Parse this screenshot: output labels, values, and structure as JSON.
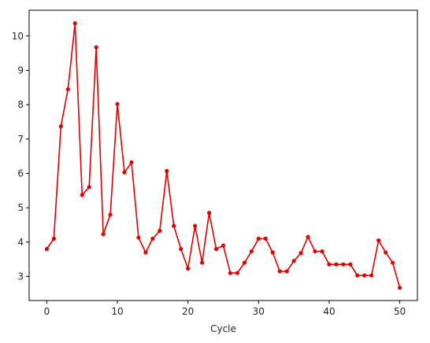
{
  "chart_data": {
    "type": "line",
    "title": "",
    "xlabel": "Cycle",
    "ylabel": "",
    "xlim": [
      -2.5,
      52.5
    ],
    "ylim": [
      2.3,
      10.75
    ],
    "xticks": [
      0,
      10,
      20,
      30,
      40,
      50
    ],
    "yticks": [
      3,
      4,
      5,
      6,
      7,
      8,
      9,
      10
    ],
    "grid": false,
    "legend": "none",
    "series": [
      {
        "color": "#e00000",
        "marker": "circle",
        "x": [
          0,
          1,
          2,
          3,
          4,
          5,
          6,
          7,
          8,
          9,
          10,
          11,
          12,
          13,
          14,
          15,
          16,
          17,
          18,
          19,
          20,
          21,
          22,
          23,
          24,
          25,
          26,
          27,
          28,
          29,
          30,
          31,
          32,
          33,
          34,
          35,
          36,
          37,
          38,
          39,
          40,
          41,
          42,
          43,
          44,
          45,
          46,
          47,
          48,
          49,
          50
        ],
        "values": [
          3.8,
          4.1,
          7.37,
          8.45,
          10.37,
          5.37,
          5.6,
          9.67,
          4.23,
          4.8,
          8.02,
          6.03,
          6.32,
          4.13,
          3.7,
          4.1,
          4.33,
          6.07,
          4.47,
          3.8,
          3.23,
          4.47,
          3.4,
          4.85,
          3.8,
          3.9,
          3.1,
          3.1,
          3.4,
          3.73,
          4.1,
          4.1,
          3.7,
          3.15,
          3.15,
          3.45,
          3.68,
          4.15,
          3.73,
          3.73,
          3.35,
          3.35,
          3.35,
          3.35,
          3.03,
          3.03,
          3.03,
          4.05,
          3.7,
          3.4,
          2.67
        ]
      }
    ]
  }
}
